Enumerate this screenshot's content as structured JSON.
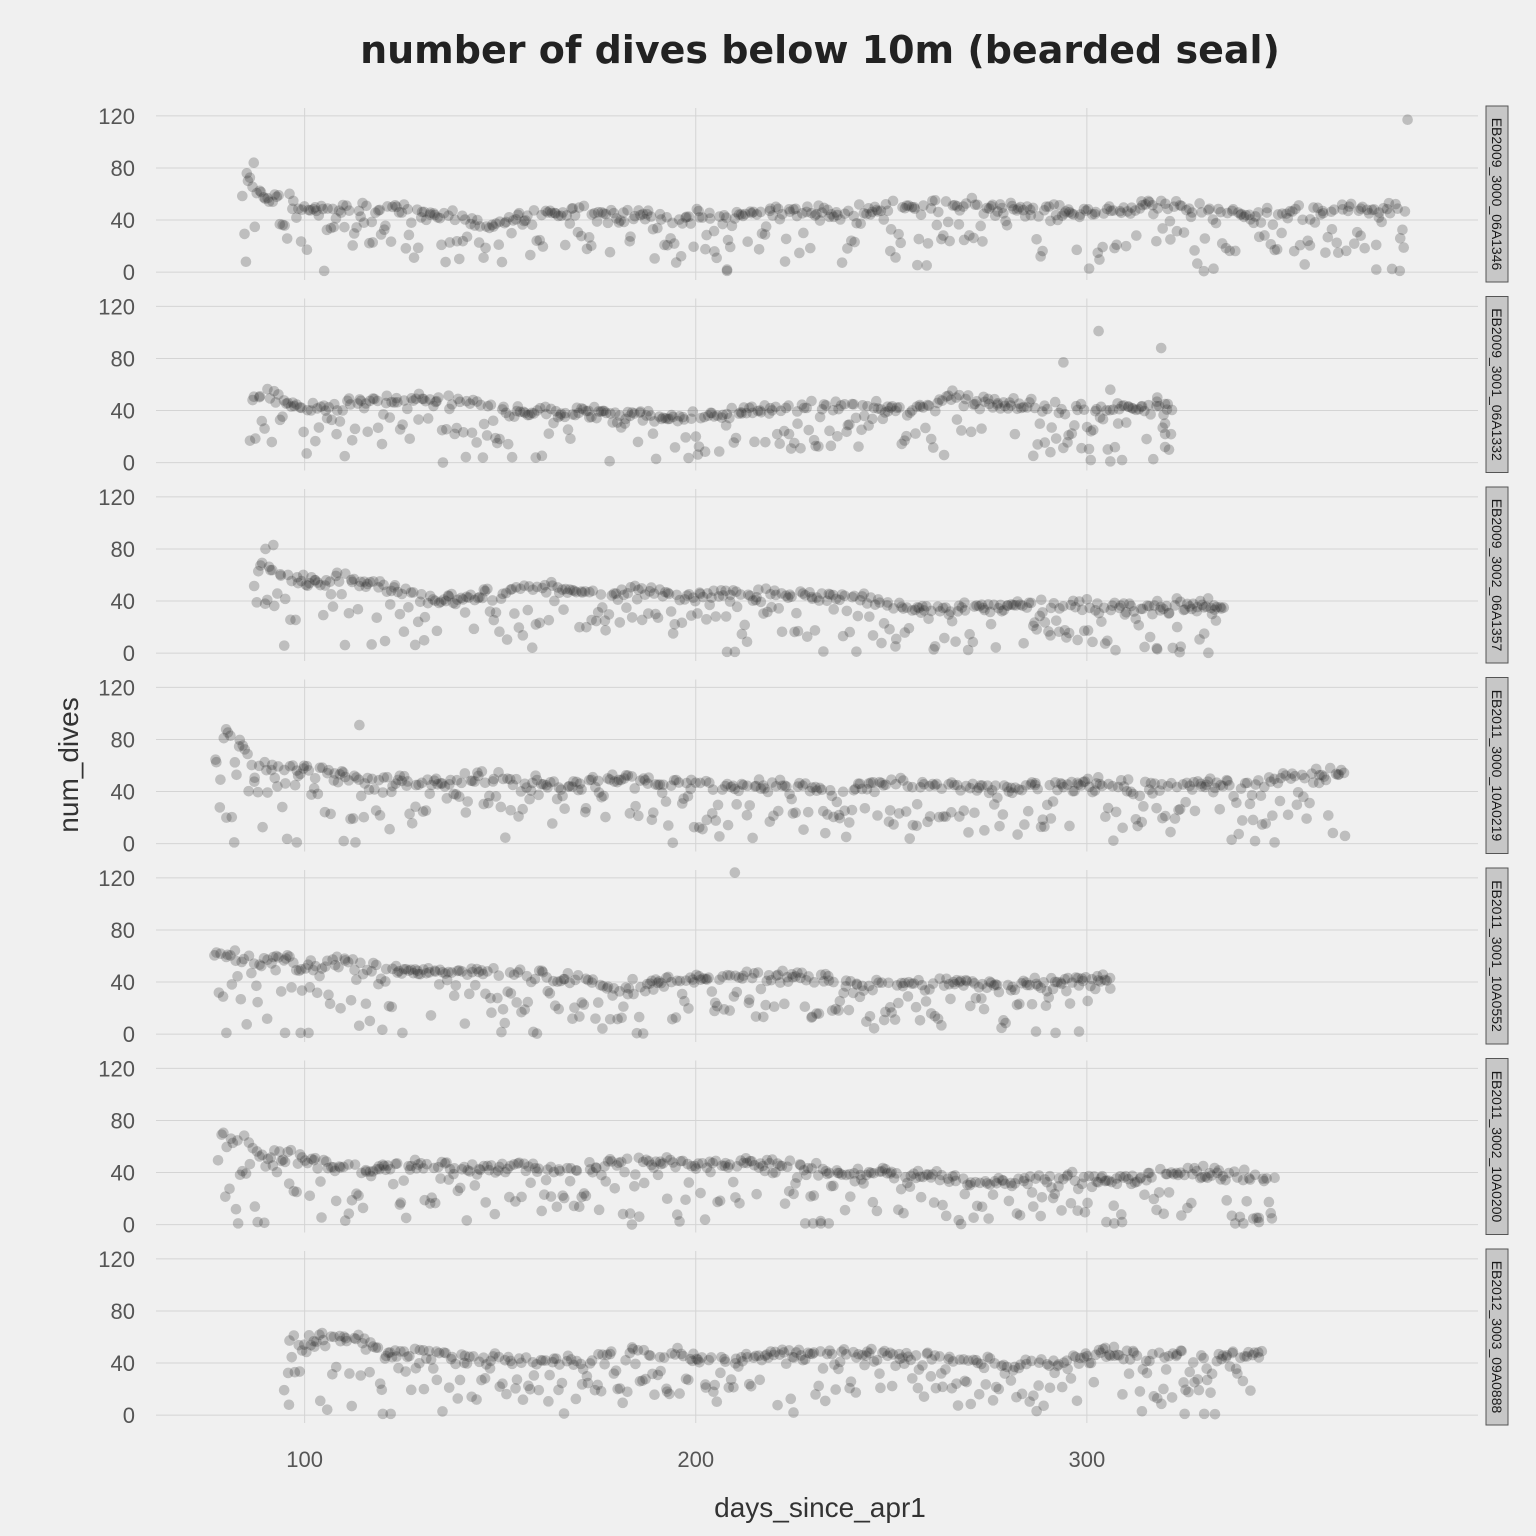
{
  "chart_data": {
    "type": "scatter",
    "title": "number of dives below 10m (bearded seal)",
    "xlabel": "days_since_apr1",
    "ylabel": "num_dives",
    "xlim": [
      62,
      400
    ],
    "ylim": [
      -6,
      126
    ],
    "x_ticks": [
      100,
      200,
      300
    ],
    "y_ticks": [
      0,
      40,
      80,
      120
    ],
    "grid": true,
    "colors": {
      "background": "#f0f0f0",
      "points": "#262626",
      "grid": "#d4d4d4",
      "strip": "#c7c7c7"
    },
    "facets": [
      {
        "label": "EB2009_3000_06A1346",
        "x_range": [
          84,
          382
        ],
        "lines": [
          {
            "x": 85,
            "y": 72
          },
          {
            "x": 90,
            "y": 55
          },
          {
            "x": 95,
            "y": 60
          },
          {
            "x": 100,
            "y": 48
          },
          {
            "x": 110,
            "y": 47
          },
          {
            "x": 120,
            "y": 50
          },
          {
            "x": 130,
            "y": 45
          },
          {
            "x": 140,
            "y": 42
          },
          {
            "x": 145,
            "y": 36
          },
          {
            "x": 155,
            "y": 40
          },
          {
            "x": 165,
            "y": 45
          },
          {
            "x": 180,
            "y": 48
          },
          {
            "x": 195,
            "y": 43
          },
          {
            "x": 210,
            "y": 42
          },
          {
            "x": 220,
            "y": 48
          },
          {
            "x": 235,
            "y": 45
          },
          {
            "x": 250,
            "y": 50
          },
          {
            "x": 265,
            "y": 52
          },
          {
            "x": 280,
            "y": 50
          },
          {
            "x": 300,
            "y": 45
          },
          {
            "x": 320,
            "y": 52
          },
          {
            "x": 340,
            "y": 45
          },
          {
            "x": 365,
            "y": 48
          }
        ],
        "outliers": [
          {
            "x": 87,
            "y": 84
          },
          {
            "x": 85,
            "y": 8
          },
          {
            "x": 105,
            "y": 1
          },
          {
            "x": 208,
            "y": 1
          },
          {
            "x": 208,
            "y": 2
          },
          {
            "x": 370,
            "y": 28
          },
          {
            "x": 374,
            "y": 2
          },
          {
            "x": 380,
            "y": 1
          },
          {
            "x": 382,
            "y": 117
          }
        ]
      },
      {
        "label": "EB2009_3001_06A1332",
        "x_range": [
          86,
          322
        ],
        "lines": [
          {
            "x": 86,
            "y": 48
          },
          {
            "x": 90,
            "y": 55
          },
          {
            "x": 95,
            "y": 45
          },
          {
            "x": 100,
            "y": 40
          },
          {
            "x": 110,
            "y": 44
          },
          {
            "x": 120,
            "y": 46
          },
          {
            "x": 130,
            "y": 48
          },
          {
            "x": 140,
            "y": 47
          },
          {
            "x": 150,
            "y": 42
          },
          {
            "x": 160,
            "y": 38
          },
          {
            "x": 175,
            "y": 38
          },
          {
            "x": 190,
            "y": 35
          },
          {
            "x": 205,
            "y": 36
          },
          {
            "x": 215,
            "y": 40
          },
          {
            "x": 230,
            "y": 45
          },
          {
            "x": 245,
            "y": 42
          },
          {
            "x": 255,
            "y": 38
          },
          {
            "x": 265,
            "y": 50
          },
          {
            "x": 280,
            "y": 45
          },
          {
            "x": 300,
            "y": 42
          }
        ],
        "outliers": [
          {
            "x": 294,
            "y": 77
          },
          {
            "x": 303,
            "y": 101
          },
          {
            "x": 306,
            "y": 56
          },
          {
            "x": 308,
            "y": 30
          },
          {
            "x": 301,
            "y": 2
          },
          {
            "x": 306,
            "y": 1
          },
          {
            "x": 309,
            "y": 2
          },
          {
            "x": 319,
            "y": 88
          },
          {
            "x": 318,
            "y": 50
          },
          {
            "x": 320,
            "y": 45
          },
          {
            "x": 320,
            "y": 30
          },
          {
            "x": 320,
            "y": 22
          },
          {
            "x": 321,
            "y": 10
          },
          {
            "x": 320,
            "y": 12
          }
        ]
      },
      {
        "label": "EB2009_3002_06A1357",
        "x_range": [
          87,
          335
        ],
        "lines": [
          {
            "x": 88,
            "y": 72
          },
          {
            "x": 92,
            "y": 62
          },
          {
            "x": 100,
            "y": 55
          },
          {
            "x": 110,
            "y": 58
          },
          {
            "x": 120,
            "y": 52
          },
          {
            "x": 130,
            "y": 42
          },
          {
            "x": 140,
            "y": 40
          },
          {
            "x": 150,
            "y": 48
          },
          {
            "x": 160,
            "y": 52
          },
          {
            "x": 175,
            "y": 45
          },
          {
            "x": 185,
            "y": 50
          },
          {
            "x": 195,
            "y": 44
          },
          {
            "x": 205,
            "y": 45
          },
          {
            "x": 215,
            "y": 46
          },
          {
            "x": 230,
            "y": 45
          },
          {
            "x": 245,
            "y": 40
          },
          {
            "x": 255,
            "y": 35
          },
          {
            "x": 270,
            "y": 35
          },
          {
            "x": 285,
            "y": 37
          },
          {
            "x": 300,
            "y": 35
          }
        ],
        "outliers": [
          {
            "x": 90,
            "y": 80
          },
          {
            "x": 92,
            "y": 83
          },
          {
            "x": 208,
            "y": 1
          },
          {
            "x": 210,
            "y": 1
          },
          {
            "x": 318,
            "y": 40
          },
          {
            "x": 323,
            "y": 42
          },
          {
            "x": 329,
            "y": 40
          },
          {
            "x": 331,
            "y": 42
          },
          {
            "x": 332,
            "y": 30
          },
          {
            "x": 333,
            "y": 25
          },
          {
            "x": 330,
            "y": 15
          },
          {
            "x": 335,
            "y": 35
          },
          {
            "x": 324,
            "y": 5
          },
          {
            "x": 318,
            "y": 3
          }
        ]
      },
      {
        "label": "EB2011_3000_10A0219",
        "x_range": [
          77,
          366
        ],
        "lines": [
          {
            "x": 78,
            "y": 80
          },
          {
            "x": 82,
            "y": 86
          },
          {
            "x": 85,
            "y": 70
          },
          {
            "x": 88,
            "y": 58
          },
          {
            "x": 95,
            "y": 60
          },
          {
            "x": 105,
            "y": 57
          },
          {
            "x": 112,
            "y": 50
          },
          {
            "x": 125,
            "y": 48
          },
          {
            "x": 140,
            "y": 50
          },
          {
            "x": 150,
            "y": 52
          },
          {
            "x": 165,
            "y": 45
          },
          {
            "x": 180,
            "y": 50
          },
          {
            "x": 195,
            "y": 46
          },
          {
            "x": 210,
            "y": 44
          },
          {
            "x": 225,
            "y": 45
          },
          {
            "x": 235,
            "y": 38
          },
          {
            "x": 245,
            "y": 46
          },
          {
            "x": 260,
            "y": 45
          },
          {
            "x": 280,
            "y": 42
          },
          {
            "x": 300,
            "y": 46
          },
          {
            "x": 320,
            "y": 44
          },
          {
            "x": 340,
            "y": 45
          },
          {
            "x": 364,
            "y": 55
          }
        ],
        "outliers": [
          {
            "x": 114,
            "y": 91
          },
          {
            "x": 80,
            "y": 20
          },
          {
            "x": 82,
            "y": 1
          },
          {
            "x": 98,
            "y": 1
          },
          {
            "x": 110,
            "y": 2
          },
          {
            "x": 113,
            "y": 1
          },
          {
            "x": 343,
            "y": 2
          },
          {
            "x": 348,
            "y": 1
          },
          {
            "x": 366,
            "y": 6
          }
        ]
      },
      {
        "label": "EB2011_3001_10A0552",
        "x_range": [
          77,
          306
        ],
        "lines": [
          {
            "x": 78,
            "y": 62
          },
          {
            "x": 82,
            "y": 60
          },
          {
            "x": 88,
            "y": 56
          },
          {
            "x": 94,
            "y": 60
          },
          {
            "x": 100,
            "y": 52
          },
          {
            "x": 110,
            "y": 55
          },
          {
            "x": 120,
            "y": 52
          },
          {
            "x": 130,
            "y": 47
          },
          {
            "x": 145,
            "y": 48
          },
          {
            "x": 160,
            "y": 45
          },
          {
            "x": 172,
            "y": 40
          },
          {
            "x": 180,
            "y": 38
          },
          {
            "x": 195,
            "y": 40
          },
          {
            "x": 210,
            "y": 45
          },
          {
            "x": 225,
            "y": 44
          },
          {
            "x": 240,
            "y": 40
          },
          {
            "x": 255,
            "y": 38
          },
          {
            "x": 265,
            "y": 40
          },
          {
            "x": 278,
            "y": 36
          },
          {
            "x": 290,
            "y": 40
          },
          {
            "x": 300,
            "y": 42
          }
        ],
        "outliers": [
          {
            "x": 210,
            "y": 124
          },
          {
            "x": 80,
            "y": 1
          },
          {
            "x": 95,
            "y": 1
          },
          {
            "x": 99,
            "y": 1
          },
          {
            "x": 101,
            "y": 1
          },
          {
            "x": 125,
            "y": 1
          },
          {
            "x": 306,
            "y": 35
          },
          {
            "x": 287,
            "y": 2
          },
          {
            "x": 292,
            "y": 1
          },
          {
            "x": 298,
            "y": 2
          }
        ]
      },
      {
        "label": "EB2011_3002_10A0200",
        "x_range": [
          78,
          348
        ],
        "lines": [
          {
            "x": 78,
            "y": 70
          },
          {
            "x": 84,
            "y": 65
          },
          {
            "x": 90,
            "y": 55
          },
          {
            "x": 100,
            "y": 50
          },
          {
            "x": 110,
            "y": 42
          },
          {
            "x": 125,
            "y": 45
          },
          {
            "x": 140,
            "y": 44
          },
          {
            "x": 155,
            "y": 45
          },
          {
            "x": 170,
            "y": 42
          },
          {
            "x": 185,
            "y": 50
          },
          {
            "x": 200,
            "y": 46
          },
          {
            "x": 215,
            "y": 48
          },
          {
            "x": 225,
            "y": 45
          },
          {
            "x": 235,
            "y": 40
          },
          {
            "x": 250,
            "y": 40
          },
          {
            "x": 260,
            "y": 38
          },
          {
            "x": 270,
            "y": 32
          },
          {
            "x": 285,
            "y": 34
          },
          {
            "x": 300,
            "y": 36
          },
          {
            "x": 310,
            "y": 34
          },
          {
            "x": 325,
            "y": 40
          },
          {
            "x": 345,
            "y": 36
          }
        ],
        "outliers": [
          {
            "x": 83,
            "y": 1
          },
          {
            "x": 88,
            "y": 2
          },
          {
            "x": 228,
            "y": 1
          },
          {
            "x": 230,
            "y": 1
          },
          {
            "x": 232,
            "y": 1
          },
          {
            "x": 234,
            "y": 1
          },
          {
            "x": 305,
            "y": 2
          },
          {
            "x": 307,
            "y": 1
          },
          {
            "x": 309,
            "y": 2
          },
          {
            "x": 340,
            "y": 1
          },
          {
            "x": 344,
            "y": 2
          },
          {
            "x": 348,
            "y": 36
          }
        ]
      },
      {
        "label": "EB2012_3003_09A0888",
        "x_range": [
          95,
          345
        ],
        "lines": [
          {
            "x": 95,
            "y": 62
          },
          {
            "x": 100,
            "y": 56
          },
          {
            "x": 110,
            "y": 58
          },
          {
            "x": 115,
            "y": 60
          },
          {
            "x": 120,
            "y": 46
          },
          {
            "x": 125,
            "y": 48
          },
          {
            "x": 135,
            "y": 44
          },
          {
            "x": 150,
            "y": 42
          },
          {
            "x": 165,
            "y": 40
          },
          {
            "x": 178,
            "y": 46
          },
          {
            "x": 185,
            "y": 50
          },
          {
            "x": 200,
            "y": 45
          },
          {
            "x": 210,
            "y": 42
          },
          {
            "x": 220,
            "y": 46
          },
          {
            "x": 230,
            "y": 48
          },
          {
            "x": 245,
            "y": 46
          },
          {
            "x": 260,
            "y": 44
          },
          {
            "x": 275,
            "y": 40
          },
          {
            "x": 290,
            "y": 40
          },
          {
            "x": 300,
            "y": 48
          },
          {
            "x": 315,
            "y": 45
          },
          {
            "x": 330,
            "y": 44
          },
          {
            "x": 345,
            "y": 48
          }
        ],
        "outliers": [
          {
            "x": 120,
            "y": 1
          },
          {
            "x": 122,
            "y": 1
          },
          {
            "x": 225,
            "y": 2
          },
          {
            "x": 325,
            "y": 1
          },
          {
            "x": 330,
            "y": 1
          },
          {
            "x": 96,
            "y": 8
          },
          {
            "x": 104,
            "y": 11
          }
        ]
      }
    ]
  }
}
